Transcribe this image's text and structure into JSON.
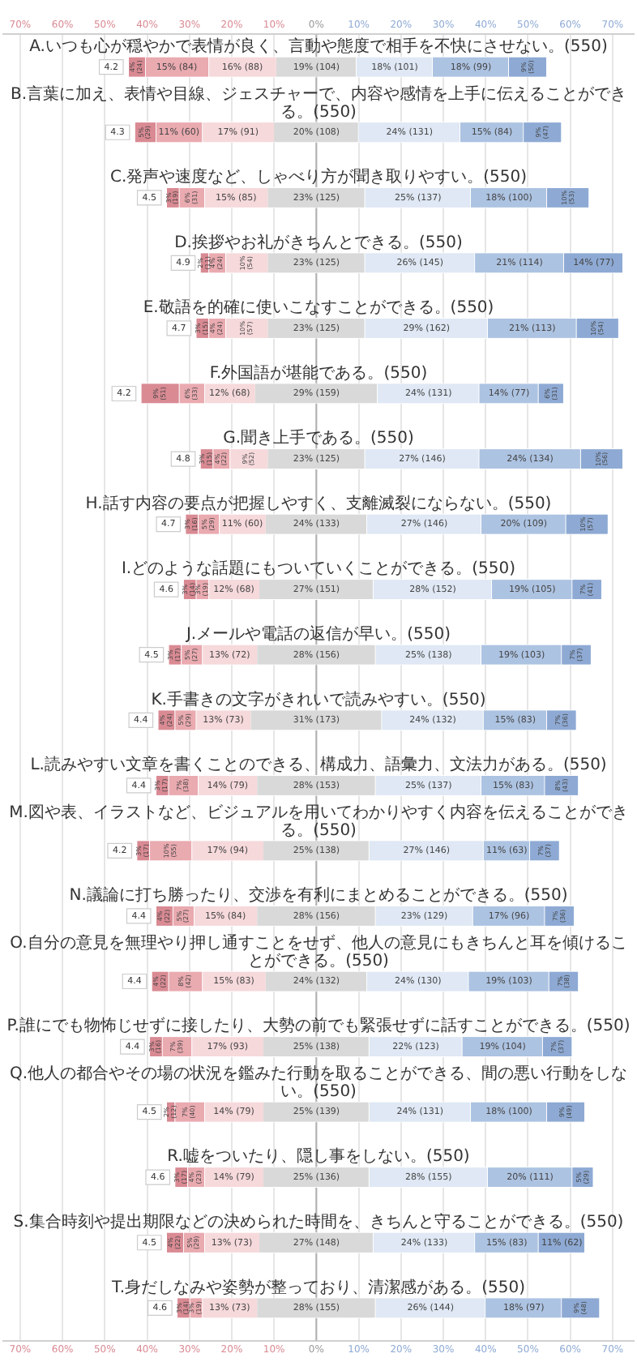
{
  "chart_data": {
    "type": "bar",
    "orientation": "horizontal",
    "categories": [
      "A.いつも心が穏やかで表情が良く、言動や態度で相手を不快にさせない。(550)",
      "B.言葉に加え、表情や目線、ジェスチャーで、内容や感情を上手に伝えることができる。(550)",
      "C.発声や速度など、しゃべり方が聞き取りやすい。(550)",
      "D.挨拶やお礼がきちんとできる。(550)",
      "E.敬語を的確に使いこなすことができる。(550)",
      "F.外国語が堪能である。(550)",
      "G.聞き上手である。(550)",
      "H.話す内容の要点が把握しやすく、支離滅裂にならない。(550)",
      "I.どのような話題にもついていくことができる。(550)",
      "J.メールや電話の返信が早い。(550)",
      "K.手書きの文字がきれいで読みやすい。(550)",
      "L.読みやすい文章を書くことのできる、構成力、語彙力、文法力がある。(550)",
      "M.図や表、イラストなど、ビジュアルを用いてわかりやすく内容を伝えることができる。(550)",
      "N.議論に打ち勝ったり、交渉を有利にまとめることができる。(550)",
      "O.自分の意見を無理やり押し通すことをせず、他人の意見にもきちんと耳を傾けることができる。(550)",
      "P.誰にでも物怖じせずに接したり、大勢の前でも緊張せずに話すことができる。(550)",
      "Q.他人の都合やその場の状況を鑑みた行動を取ることができる、間の悪い行動をしない。(550)",
      "R.嘘をついたり、隠し事をしない。(550)",
      "S.集合時刻や提出期限などの決められた時間を、きちんと守ることができる。(550)",
      "T.身だしなみや姿勢が整っており、清潔感がある。(550)"
    ],
    "series": [
      {
        "color": "#d98a93",
        "base": [
          -44.5,
          -43,
          -35.5,
          -27.5,
          -28.5,
          -41.5,
          -27.5,
          -31,
          -31.5,
          -35,
          -37.5,
          -38,
          -42.5,
          -38,
          -39,
          -39.5,
          -35.5,
          -33.5,
          -35.5,
          -33
        ],
        "values": [
          4,
          5,
          3,
          2,
          3,
          9,
          3,
          3,
          3,
          3,
          4,
          3,
          3,
          4,
          4,
          3,
          2,
          3,
          4,
          3
        ],
        "value_labels": [
          "4% (24)",
          "5% (29)",
          "3% (19)",
          "2% (11)",
          "3% (15)",
          "9% (51)",
          "3% (15)",
          "3% (16)",
          "3% (14)",
          "3% (17)",
          "4% (24)",
          "3% (17)",
          "3% (17)",
          "4% (22)",
          "4% (22)",
          "3% (16)",
          "2% (12)",
          "3% (17)",
          "4% (22)",
          "3% (14)"
        ]
      },
      {
        "color": "#e9aab0",
        "base": [
          -40.5,
          -38,
          -32.5,
          -25.5,
          -25.5,
          -32.5,
          -24.5,
          -28,
          -28.5,
          -32,
          -33.5,
          -35,
          -39.5,
          -34,
          -35,
          -36.5,
          -33.5,
          -30.5,
          -31.5,
          -30
        ],
        "values": [
          15,
          11,
          6,
          4,
          4,
          6,
          4,
          5,
          3,
          5,
          5,
          7,
          10,
          5,
          8,
          7,
          7,
          4,
          5,
          3
        ],
        "value_labels": [
          "15% (84)",
          "11% (60)",
          "6% (31)",
          "4% (24)",
          "4% (24)",
          "6% (33)",
          "4% (22)",
          "5% (29)",
          "3% (19)",
          "5% (27)",
          "5% (29)",
          "7% (38)",
          "10% (55)",
          "5% (27)",
          "8% (42)",
          "7% (39)",
          "7% (40)",
          "4% (23)",
          "5% (29)",
          "3% (19)"
        ]
      },
      {
        "color": "#f6d9db",
        "base": [
          -25.5,
          -27,
          -26.5,
          -21.5,
          -21.5,
          -26.5,
          -20.5,
          -23,
          -25.5,
          -27,
          -28.5,
          -28,
          -29.5,
          -29,
          -27,
          -29.5,
          -26.5,
          -26.5,
          -26.5,
          -27
        ],
        "values": [
          16,
          17,
          15,
          10,
          10,
          12,
          9,
          11,
          12,
          13,
          13,
          14,
          17,
          15,
          15,
          17,
          14,
          14,
          13,
          13
        ],
        "value_labels": [
          "16% (88)",
          "17% (91)",
          "15% (85)",
          "10% (54)",
          "10% (57)",
          "12% (68)",
          "9% (52)",
          "11% (60)",
          "12% (68)",
          "13% (72)",
          "13% (73)",
          "14% (79)",
          "17% (94)",
          "15% (84)",
          "15% (83)",
          "17% (93)",
          "14% (79)",
          "14% (79)",
          "13% (73)",
          "13% (73)"
        ]
      },
      {
        "color": "#d9d9d9",
        "base": [
          -9.5,
          -10,
          -11.5,
          -11.5,
          -11.5,
          -14.5,
          -11.5,
          -12,
          -13.5,
          -14,
          -15.5,
          -14,
          -12.5,
          -14,
          -12,
          -12.5,
          -12.5,
          -12.5,
          -13.5,
          -14
        ],
        "values": [
          19,
          20,
          23,
          23,
          23,
          29,
          23,
          24,
          27,
          28,
          31,
          28,
          25,
          28,
          24,
          25,
          25,
          25,
          27,
          28
        ],
        "value_labels": [
          "19% (104)",
          "20% (108)",
          "23% (125)",
          "23% (125)",
          "23% (125)",
          "29% (159)",
          "23% (125)",
          "24% (133)",
          "27% (151)",
          "28% (156)",
          "31% (173)",
          "28% (153)",
          "25% (138)",
          "28% (156)",
          "24% (132)",
          "25% (138)",
          "25% (139)",
          "25% (136)",
          "27% (148)",
          "28% (155)"
        ]
      },
      {
        "color": "#dfe8f4",
        "base": [
          9.5,
          10,
          11.5,
          11.5,
          11.5,
          14.5,
          11.5,
          12,
          13.5,
          14,
          15.5,
          14,
          12.5,
          14,
          12,
          12.5,
          12.5,
          12.5,
          13.5,
          14
        ],
        "values": [
          18,
          24,
          25,
          26,
          29,
          24,
          27,
          27,
          28,
          25,
          24,
          25,
          27,
          23,
          24,
          22,
          24,
          28,
          24,
          26
        ],
        "value_labels": [
          "18% (101)",
          "24% (131)",
          "25% (137)",
          "26% (145)",
          "29% (162)",
          "24% (131)",
          "27% (146)",
          "27% (146)",
          "28% (152)",
          "25% (138)",
          "24% (132)",
          "25% (137)",
          "27% (146)",
          "23% (129)",
          "24% (130)",
          "22% (123)",
          "24% (131)",
          "28% (155)",
          "24% (133)",
          "26% (144)"
        ]
      },
      {
        "color": "#adc3e2",
        "base": [
          27.5,
          34,
          36.5,
          37.5,
          40.5,
          38.5,
          38.5,
          39,
          41.5,
          39,
          39.5,
          39,
          39.5,
          37,
          36,
          34.5,
          36.5,
          40.5,
          37.5,
          40
        ],
        "values": [
          18,
          15,
          18,
          21,
          21,
          14,
          24,
          20,
          19,
          19,
          15,
          15,
          11,
          17,
          19,
          19,
          18,
          20,
          15,
          18
        ],
        "value_labels": [
          "18% (99)",
          "15% (84)",
          "18% (100)",
          "21% (114)",
          "21% (113)",
          "14% (77)",
          "24% (134)",
          "20% (109)",
          "19% (105)",
          "19% (103)",
          "15% (83)",
          "15% (83)",
          "11% (63)",
          "17% (96)",
          "19% (103)",
          "19% (104)",
          "18% (100)",
          "20% (111)",
          "15% (83)",
          "18% (97)"
        ]
      },
      {
        "color": "#8eaad4",
        "base": [
          45.5,
          49,
          54.5,
          58.5,
          61.5,
          52.5,
          62.5,
          59,
          60.5,
          58,
          54.5,
          54,
          50.5,
          54,
          55,
          53.5,
          54.5,
          60.5,
          52.5,
          58
        ],
        "values": [
          9,
          9,
          10,
          14,
          10,
          6,
          10,
          10,
          7,
          7,
          7,
          8,
          7,
          7,
          7,
          7,
          9,
          5,
          11,
          9
        ],
        "value_labels": [
          "9% (50)",
          "9% (47)",
          "10% (53)",
          "14% (77)",
          "10% (54)",
          "6% (31)",
          "10% (56)",
          "10% (57)",
          "7% (41)",
          "7% (37)",
          "7% (36)",
          "8% (43)",
          "7% (37)",
          "7% (36)",
          "7% (38)",
          "7% (37)",
          "9% (49)",
          "5% (29)",
          "11% (62)",
          "9% (48)"
        ]
      }
    ],
    "xlim": [
      -74,
      75
    ],
    "xticks": [
      {
        "value": -70,
        "label": "70%"
      },
      {
        "value": -60,
        "label": "60%"
      },
      {
        "value": -50,
        "label": "50%"
      },
      {
        "value": -40,
        "label": "40%"
      },
      {
        "value": -30,
        "label": "30%"
      },
      {
        "value": -20,
        "label": "20%"
      },
      {
        "value": -10,
        "label": "10%"
      },
      {
        "value": 0,
        "label": "0%"
      },
      {
        "value": 10,
        "label": "10%"
      },
      {
        "value": 20,
        "label": "20%"
      },
      {
        "value": 30,
        "label": "30%"
      },
      {
        "value": 40,
        "label": "40%"
      },
      {
        "value": 50,
        "label": "50%"
      },
      {
        "value": 60,
        "label": "60%"
      },
      {
        "value": 70,
        "label": "70%"
      }
    ],
    "x2lim": [
      -74,
      75
    ],
    "x2ticks": [
      {
        "value": -70,
        "label": "70%"
      },
      {
        "value": -60,
        "label": "60%"
      },
      {
        "value": -50,
        "label": "50%"
      },
      {
        "value": -40,
        "label": "40%"
      },
      {
        "value": -30,
        "label": "30%"
      },
      {
        "value": -20,
        "label": "20%"
      },
      {
        "value": -10,
        "label": "10%"
      },
      {
        "value": 0,
        "label": "0%"
      },
      {
        "value": 10,
        "label": "10%"
      },
      {
        "value": 20,
        "label": "20%"
      },
      {
        "value": 30,
        "label": "30%"
      },
      {
        "value": 40,
        "label": "40%"
      },
      {
        "value": 50,
        "label": "50%"
      },
      {
        "value": 60,
        "label": "60%"
      },
      {
        "value": 70,
        "label": "70%"
      }
    ],
    "grid": "x",
    "legend": false,
    "tick_labels": "x",
    "annotations": [
      "4.2",
      "4.3",
      "4.5",
      "4.9",
      "4.7",
      "4.2",
      "4.8",
      "4.7",
      "4.6",
      "4.5",
      "4.4",
      "4.4",
      "4.2",
      "4.4",
      "4.4",
      "4.4",
      "4.5",
      "4.6",
      "4.5",
      "4.6"
    ]
  }
}
